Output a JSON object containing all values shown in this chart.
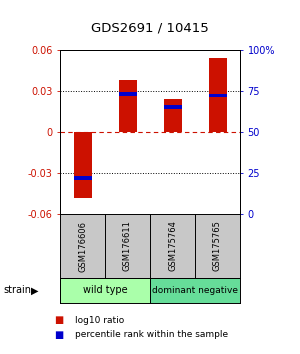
{
  "title": "GDS2691 / 10415",
  "samples": [
    "GSM176606",
    "GSM176611",
    "GSM175764",
    "GSM175765"
  ],
  "log10_ratios": [
    -0.048,
    0.038,
    0.024,
    0.054
  ],
  "percentile_ranks": [
    22,
    73,
    65,
    72
  ],
  "group_labels": [
    "wild type",
    "dominant negative"
  ],
  "group_colors": [
    "#aaffaa",
    "#66dd99"
  ],
  "ylim": [
    -0.06,
    0.06
  ],
  "y_ticks_left": [
    -0.06,
    -0.03,
    0,
    0.03,
    0.06
  ],
  "y_ticks_right": [
    0,
    25,
    50,
    75,
    100
  ],
  "bar_color": "#CC1100",
  "pct_color": "#0000CC",
  "background_color": "#ffffff",
  "zero_line_color": "#CC1100",
  "bar_width": 0.4
}
